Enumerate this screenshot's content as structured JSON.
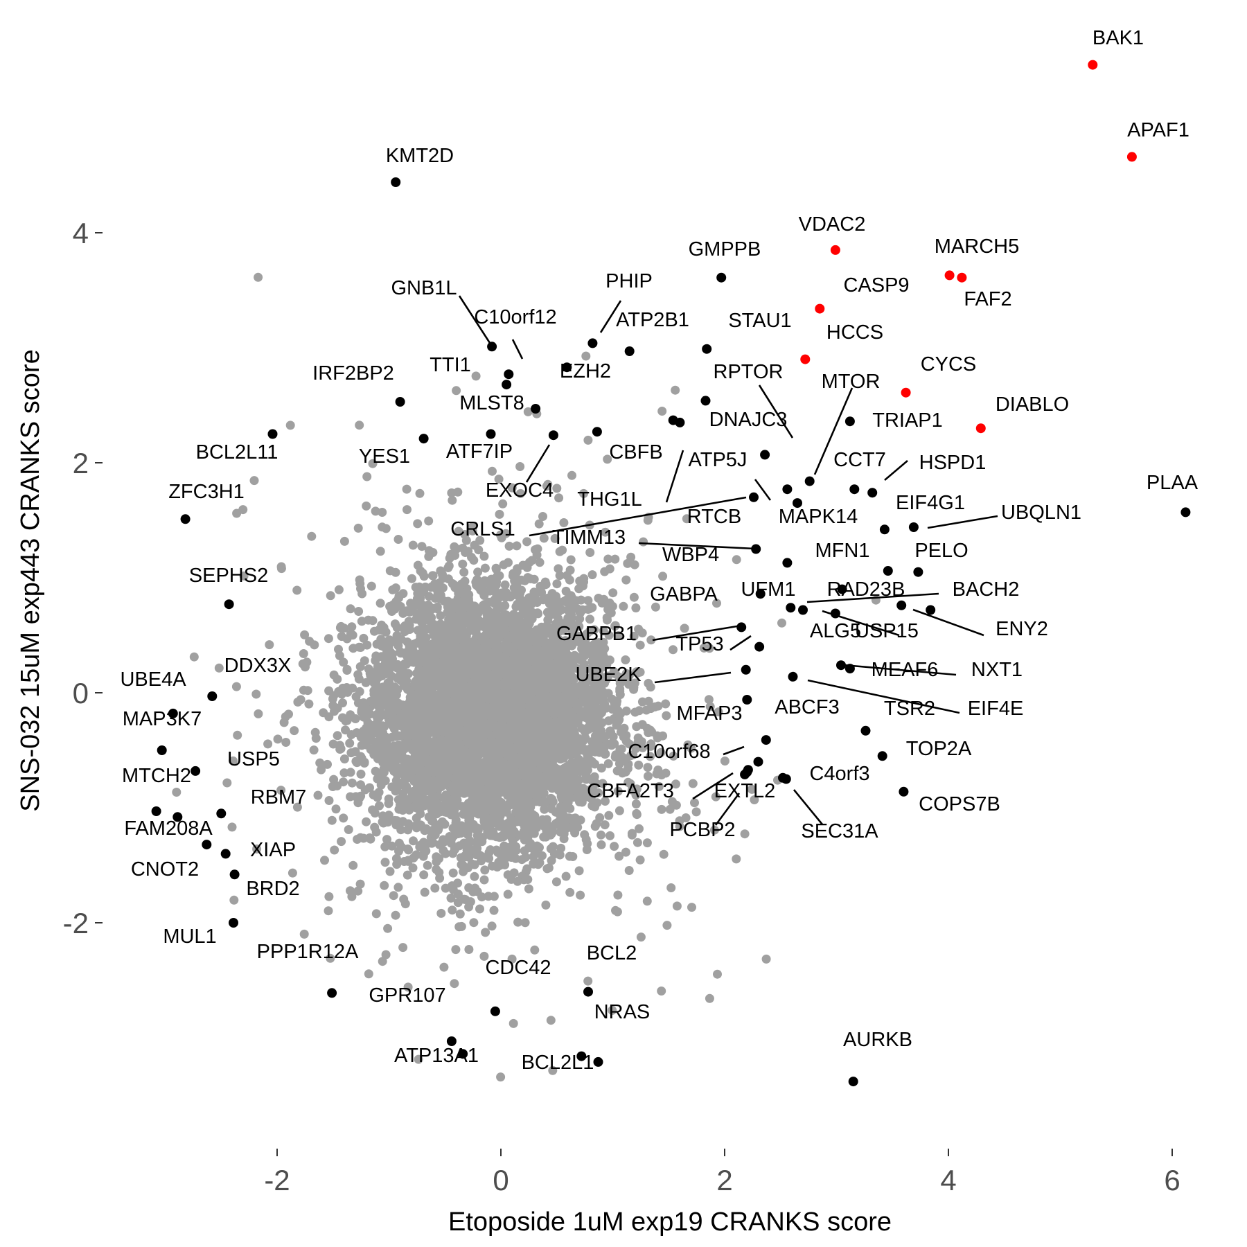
{
  "chart_data": {
    "type": "scatter",
    "title": "",
    "xlabel": "Etoposide 1uM exp19 CRANKS score",
    "ylabel": "SNS-032 15uM exp443 CRANKS score",
    "xlim": [
      -3.4,
      6.6
    ],
    "ylim": [
      -3.9,
      5.3
    ],
    "grid": false,
    "x_ticks": [
      -2,
      0,
      2,
      4,
      6
    ],
    "x_tick_labels": [
      "-2",
      "0",
      "2",
      "4",
      "6"
    ],
    "y_ticks": [
      -2,
      0,
      2,
      4
    ],
    "y_tick_labels": [
      "-2",
      "0",
      "2",
      "4"
    ],
    "colors": {
      "background": "#grey-bg-unused",
      "other": "#a0a0a0",
      "hit": "#000000",
      "highlight": "#ff0000"
    },
    "background_cloud": {
      "description_counts": {
        "n": 5200
      },
      "center": [
        0,
        0
      ],
      "sd": [
        0.55,
        0.55
      ]
    },
    "series": [
      {
        "name": "",
        "color": "#ff0000",
        "points": [
          {
            "label": "BAK1",
            "x": 5.29,
            "y": 5.46
          },
          {
            "label": "APAF1",
            "x": 5.64,
            "y": 4.66
          },
          {
            "label": "VDAC2",
            "x": 2.99,
            "y": 3.85
          },
          {
            "label": "MARCH5",
            "x": 4.01,
            "y": 3.63
          },
          {
            "label": "FAF2",
            "x": 4.12,
            "y": 3.61
          },
          {
            "label": "CASP9",
            "x": 2.85,
            "y": 3.34
          },
          {
            "label": "HCCS",
            "x": 2.72,
            "y": 2.9
          },
          {
            "label": "CYCS",
            "x": 3.62,
            "y": 2.61
          },
          {
            "label": "DIABLO",
            "x": 4.29,
            "y": 2.3
          }
        ]
      },
      {
        "name": "",
        "color": "#000000",
        "points": [
          {
            "label": "KMT2D",
            "x": -0.94,
            "y": 4.44
          },
          {
            "label": "GMPPB",
            "x": 1.97,
            "y": 3.61
          },
          {
            "label": "PLAA",
            "x": 6.12,
            "y": 1.57
          },
          {
            "label": "GNB1L",
            "x": -0.08,
            "y": 3.01
          },
          {
            "label": "C10orf12",
            "x": 0.07,
            "y": 2.77
          },
          {
            "label": "PHIP",
            "x": 0.82,
            "y": 3.04
          },
          {
            "label": "ATP2B1",
            "x": 1.15,
            "y": 2.97
          },
          {
            "label": "STAU1",
            "x": 1.84,
            "y": 2.99
          },
          {
            "label": "TTI1",
            "x": 0.05,
            "y": 2.68
          },
          {
            "label": "EZH2",
            "x": 0.59,
            "y": 2.83
          },
          {
            "label": "IRF2BP2",
            "x": -0.9,
            "y": 2.53
          },
          {
            "label": "BCL2L11",
            "x": -2.04,
            "y": 2.25
          },
          {
            "label": "MLST8",
            "x": 0.31,
            "y": 2.47
          },
          {
            "label": "YES1",
            "x": -0.69,
            "y": 2.21
          },
          {
            "label": "ATF7IP",
            "x": -0.09,
            "y": 2.25
          },
          {
            "label": "RPTOR",
            "x": 1.83,
            "y": 2.54
          },
          {
            "label": "DNAJC3",
            "x": 2.36,
            "y": 2.07
          },
          {
            "label": "MTOR",
            "x": 2.76,
            "y": 1.84
          },
          {
            "label": "TRIAP1",
            "x": 3.12,
            "y": 2.36
          },
          {
            "label": "CBFB",
            "x": 0.86,
            "y": 2.27
          },
          {
            "label": "ATP5J",
            "x": 1.6,
            "y": 2.35
          },
          {
            "label": "EXOC4",
            "x": 0.47,
            "y": 2.24
          },
          {
            "label": "THG1L",
            "x": 1.54,
            "y": 2.37
          },
          {
            "label": "CCT7",
            "x": 3.16,
            "y": 1.77
          },
          {
            "label": "HSPD1",
            "x": 3.32,
            "y": 1.74
          },
          {
            "label": "ZFC3H1",
            "x": -2.82,
            "y": 1.51
          },
          {
            "label": "CRLS1",
            "x": 2.26,
            "y": 1.7
          },
          {
            "label": "RTCB",
            "x": 2.56,
            "y": 1.77
          },
          {
            "label": "MAPK14",
            "x": 2.65,
            "y": 1.65
          },
          {
            "label": "EIF4G1",
            "x": 3.43,
            "y": 1.42
          },
          {
            "label": "UBQLN1",
            "x": 3.69,
            "y": 1.44
          },
          {
            "label": "TIMM13",
            "x": 2.28,
            "y": 1.25
          },
          {
            "label": "WBP4",
            "x": 2.56,
            "y": 1.13
          },
          {
            "label": "MFN1",
            "x": 3.46,
            "y": 1.06
          },
          {
            "label": "PELO",
            "x": 3.73,
            "y": 1.05
          },
          {
            "label": "SEPHS2",
            "x": -2.43,
            "y": 0.77
          },
          {
            "label": "GABPA",
            "x": 2.32,
            "y": 0.86
          },
          {
            "label": "UFM1",
            "x": 2.59,
            "y": 0.74
          },
          {
            "label": "RAD23B",
            "x": 3.05,
            "y": 0.9
          },
          {
            "label": "BACH2",
            "x": 3.58,
            "y": 0.76
          },
          {
            "label": "ALG5",
            "x": 2.7,
            "y": 0.72
          },
          {
            "label": "USP15",
            "x": 2.99,
            "y": 0.69
          },
          {
            "label": "ENY2",
            "x": 3.84,
            "y": 0.72
          },
          {
            "label": "GABPB1",
            "x": 2.15,
            "y": 0.57
          },
          {
            "label": "TP53",
            "x": 2.31,
            "y": 0.4
          },
          {
            "label": "MEAF6",
            "x": 3.04,
            "y": 0.24
          },
          {
            "label": "NXT1",
            "x": 3.12,
            "y": 0.21
          },
          {
            "label": "UBE2K",
            "x": 2.19,
            "y": 0.2
          },
          {
            "label": "EIF4E",
            "x": 2.61,
            "y": 0.14
          },
          {
            "label": "DDX3X",
            "x": -2.58,
            "y": -0.03
          },
          {
            "label": "UBE4A",
            "x": -2.93,
            "y": -0.18
          },
          {
            "label": "MFAP3",
            "x": 2.2,
            "y": -0.06
          },
          {
            "label": "ABCF3",
            "x": 2.37,
            "y": -0.41
          },
          {
            "label": "TSR2",
            "x": 3.26,
            "y": -0.33
          },
          {
            "label": "MAP3K7",
            "x": -3.03,
            "y": -0.5
          },
          {
            "label": "C10orf68",
            "x": 2.3,
            "y": -0.6
          },
          {
            "label": "TOP2A",
            "x": 3.41,
            "y": -0.55
          },
          {
            "label": "USP5",
            "x": -2.73,
            "y": -0.68
          },
          {
            "label": "CBFA2T3",
            "x": 2.2,
            "y": -0.69
          },
          {
            "label": "EXTL2",
            "x": 2.21,
            "y": -0.67
          },
          {
            "label": "C4orf3",
            "x": 2.55,
            "y": -0.75
          },
          {
            "label": "SEC31A",
            "x": 2.52,
            "y": -0.74
          },
          {
            "label": "MTCH2",
            "x": -3.08,
            "y": -1.03
          },
          {
            "label": "FAM208A",
            "x": -2.89,
            "y": -1.08
          },
          {
            "label": "RBM7",
            "x": -2.5,
            "y": -1.05
          },
          {
            "label": "COPS7B",
            "x": 3.6,
            "y": -0.86
          },
          {
            "label": "PCBP2",
            "x": 2.18,
            "y": -0.71
          },
          {
            "label": "CNOT2",
            "x": -2.63,
            "y": -1.32
          },
          {
            "label": "XIAP",
            "x": -2.46,
            "y": -1.4
          },
          {
            "label": "BRD2",
            "x": -2.38,
            "y": -1.58
          },
          {
            "label": "MUL1",
            "x": -2.39,
            "y": -2.0
          },
          {
            "label": "PPP1R12A",
            "x": -1.51,
            "y": -2.61
          },
          {
            "label": "CDC42",
            "x": -0.05,
            "y": -2.77
          },
          {
            "label": "BCL2",
            "x": 0.78,
            "y": -2.6
          },
          {
            "label": "GPR107",
            "x": -0.44,
            "y": -3.03
          },
          {
            "label": "ATP13A1",
            "x": -0.34,
            "y": -3.14
          },
          {
            "label": "NRAS",
            "x": 0.87,
            "y": -3.21
          },
          {
            "label": "BCL2L1",
            "x": 0.72,
            "y": -3.16
          },
          {
            "label": "AURKB",
            "x": 3.15,
            "y": -3.38
          }
        ]
      }
    ],
    "labels": [
      {
        "text": "BAK1",
        "x": 5.29,
        "y": 5.46
      },
      {
        "text": "APAF1",
        "x": 5.64,
        "y": 4.66
      },
      {
        "text": "KMT2D",
        "x": -0.94,
        "y": 4.44
      },
      {
        "text": "VDAC2",
        "x": 2.99,
        "y": 3.85
      },
      {
        "text": "GMPPB",
        "x": 1.97,
        "y": 3.61
      },
      {
        "text": "MARCH5",
        "x": 4.01,
        "y": 3.63
      },
      {
        "text": "FAF2",
        "x": 4.12,
        "y": 3.61
      },
      {
        "text": "CASP9",
        "x": 2.85,
        "y": 3.34
      },
      {
        "text": "GNB1L",
        "x": -0.08,
        "y": 3.01
      },
      {
        "text": "PHIP",
        "x": 0.82,
        "y": 3.04
      },
      {
        "text": "C10orf12",
        "x": 0.07,
        "y": 2.77
      },
      {
        "text": "ATP2B1",
        "x": 1.15,
        "y": 2.97
      },
      {
        "text": "STAU1",
        "x": 1.84,
        "y": 2.99
      },
      {
        "text": "HCCS",
        "x": 2.72,
        "y": 2.9
      },
      {
        "text": "IRF2BP2",
        "x": -0.9,
        "y": 2.53
      },
      {
        "text": "TTI1",
        "x": 0.05,
        "y": 2.68
      },
      {
        "text": "EZH2",
        "x": 0.59,
        "y": 2.83
      },
      {
        "text": "RPTOR",
        "x": 1.83,
        "y": 2.54
      },
      {
        "text": "CYCS",
        "x": 3.62,
        "y": 2.61
      },
      {
        "text": "MTOR",
        "x": 2.76,
        "y": 1.84
      },
      {
        "text": "MLST8",
        "x": 0.31,
        "y": 2.47
      },
      {
        "text": "DIABLO",
        "x": 4.29,
        "y": 2.3
      },
      {
        "text": "DNAJC3",
        "x": 2.36,
        "y": 2.07
      },
      {
        "text": "TRIAP1",
        "x": 3.12,
        "y": 2.36
      },
      {
        "text": "BCL2L11",
        "x": -2.04,
        "y": 2.25
      },
      {
        "text": "YES1",
        "x": -0.69,
        "y": 2.21
      },
      {
        "text": "ATF7IP",
        "x": -0.09,
        "y": 2.25
      },
      {
        "text": "CBFB",
        "x": 0.86,
        "y": 2.27
      },
      {
        "text": "ATP5J",
        "x": 1.6,
        "y": 2.35
      },
      {
        "text": "CCT7",
        "x": 3.16,
        "y": 1.77
      },
      {
        "text": "HSPD1",
        "x": 3.32,
        "y": 1.74
      },
      {
        "text": "PLAA",
        "x": 6.12,
        "y": 1.57
      },
      {
        "text": "EXOC4",
        "x": 0.47,
        "y": 2.24
      },
      {
        "text": "ZFC3H1",
        "x": -2.82,
        "y": 1.51
      },
      {
        "text": "THG1L",
        "x": 1.54,
        "y": 2.37
      },
      {
        "text": "EIF4G1",
        "x": 3.43,
        "y": 1.42
      },
      {
        "text": "UBQLN1",
        "x": 3.69,
        "y": 1.44
      },
      {
        "text": "RTCB",
        "x": 2.56,
        "y": 1.77
      },
      {
        "text": "MAPK14",
        "x": 2.65,
        "y": 1.65
      },
      {
        "text": "CRLS1",
        "x": 2.26,
        "y": 1.7
      },
      {
        "text": "TIMM13",
        "x": 2.28,
        "y": 1.25
      },
      {
        "text": "MFN1",
        "x": 3.46,
        "y": 1.06
      },
      {
        "text": "PELO",
        "x": 3.73,
        "y": 1.05
      },
      {
        "text": "WBP4",
        "x": 2.56,
        "y": 1.13
      },
      {
        "text": "SEPHS2",
        "x": -2.43,
        "y": 0.77
      },
      {
        "text": "UFM1",
        "x": 2.59,
        "y": 0.74
      },
      {
        "text": "RAD23B",
        "x": 3.05,
        "y": 0.9
      },
      {
        "text": "BACH2",
        "x": 3.58,
        "y": 0.76
      },
      {
        "text": "GABPA",
        "x": 2.32,
        "y": 0.86
      },
      {
        "text": "ALG5",
        "x": 2.7,
        "y": 0.72
      },
      {
        "text": "USP15",
        "x": 2.99,
        "y": 0.69
      },
      {
        "text": "ENY2",
        "x": 3.84,
        "y": 0.72
      },
      {
        "text": "GABPB1",
        "x": 2.15,
        "y": 0.57
      },
      {
        "text": "TP53",
        "x": 2.31,
        "y": 0.4
      },
      {
        "text": "MEAF6",
        "x": 3.04,
        "y": 0.24
      },
      {
        "text": "NXT1",
        "x": 3.12,
        "y": 0.21
      },
      {
        "text": "DDX3X",
        "x": -2.58,
        "y": -0.03
      },
      {
        "text": "UBE2K",
        "x": 2.19,
        "y": 0.2
      },
      {
        "text": "UBE4A",
        "x": -2.93,
        "y": -0.18
      },
      {
        "text": "TSR2",
        "x": 3.26,
        "y": -0.33
      },
      {
        "text": "EIF4E",
        "x": 2.61,
        "y": 0.14
      },
      {
        "text": "ABCF3",
        "x": 2.37,
        "y": -0.41
      },
      {
        "text": "MFAP3",
        "x": 2.2,
        "y": -0.06
      },
      {
        "text": "MAP3K7",
        "x": -3.03,
        "y": -0.5
      },
      {
        "text": "TOP2A",
        "x": 3.41,
        "y": -0.55
      },
      {
        "text": "C10orf68",
        "x": 2.3,
        "y": -0.6
      },
      {
        "text": "USP5",
        "x": -2.73,
        "y": -0.68
      },
      {
        "text": "C4orf3",
        "x": 2.55,
        "y": -0.75
      },
      {
        "text": "MTCH2",
        "x": -3.08,
        "y": -1.03
      },
      {
        "text": "EXTL2",
        "x": 2.21,
        "y": -0.67
      },
      {
        "text": "CBFA2T3",
        "x": 2.2,
        "y": -0.69
      },
      {
        "text": "RBM7",
        "x": -2.5,
        "y": -1.05
      },
      {
        "text": "COPS7B",
        "x": 3.6,
        "y": -0.86
      },
      {
        "text": "FAM208A",
        "x": -2.89,
        "y": -1.08
      },
      {
        "text": "PCBP2",
        "x": 2.18,
        "y": -0.71
      },
      {
        "text": "SEC31A",
        "x": 2.52,
        "y": -0.74
      },
      {
        "text": "XIAP",
        "x": -2.46,
        "y": -1.4
      },
      {
        "text": "CNOT2",
        "x": -2.63,
        "y": -1.32
      },
      {
        "text": "BRD2",
        "x": -2.38,
        "y": -1.58
      },
      {
        "text": "MUL1",
        "x": -2.39,
        "y": -2.0
      },
      {
        "text": "PPP1R12A",
        "x": -1.51,
        "y": -2.61
      },
      {
        "text": "BCL2",
        "x": 0.78,
        "y": -2.6
      },
      {
        "text": "CDC42",
        "x": -0.05,
        "y": -2.77
      },
      {
        "text": "GPR107",
        "x": -0.44,
        "y": -3.03
      },
      {
        "text": "NRAS",
        "x": 0.87,
        "y": -3.21
      },
      {
        "text": "AURKB",
        "x": 3.15,
        "y": -3.38
      },
      {
        "text": "ATP13A1",
        "x": -0.34,
        "y": -3.14
      },
      {
        "text": "BCL2L1",
        "x": 0.72,
        "y": -3.16
      }
    ]
  }
}
